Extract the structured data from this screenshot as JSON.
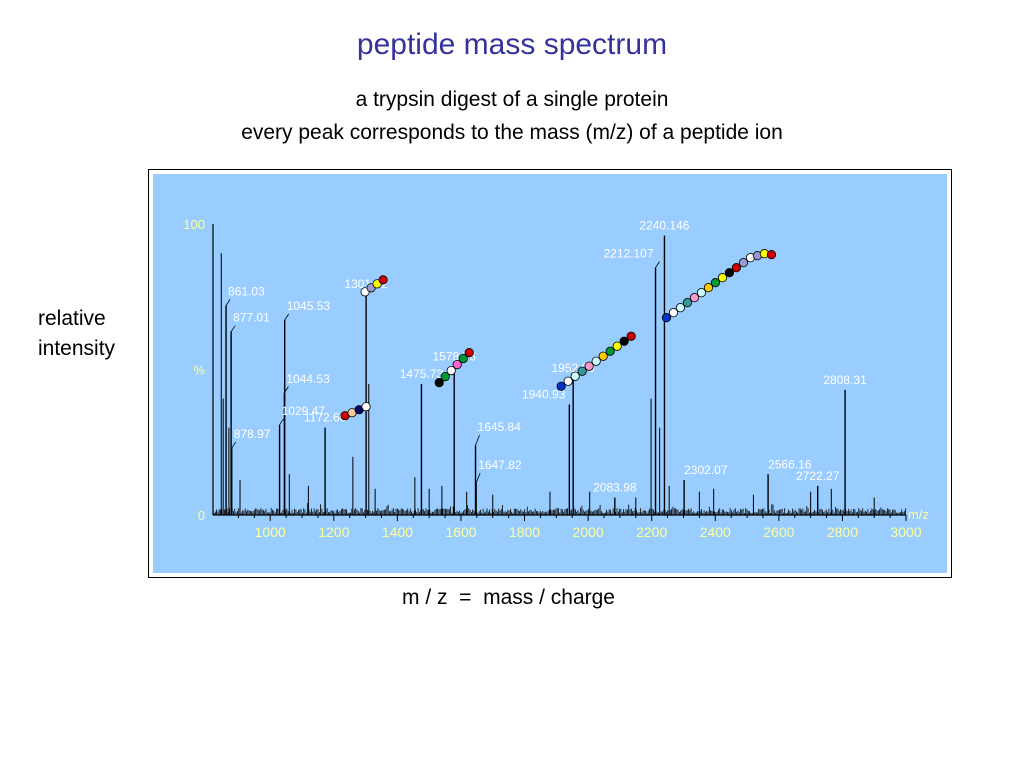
{
  "slide": {
    "title": "peptide mass spectrum",
    "subtitle1": "a trypsin digest of a single protein",
    "subtitle2": "every peak corresponds to the mass (m/z) of a peptide ion",
    "ylabel_line1": "relative",
    "ylabel_line2": "intensity",
    "xcaption": "m / z  =  mass / charge"
  },
  "colors": {
    "title": "#333399",
    "panel_bg": "#99ccff",
    "axis_text": "#ffff99",
    "peak_label": "#ffffff",
    "spectrum": "#000000"
  },
  "chart_data": {
    "type": "line",
    "xlabel": "m/z",
    "ylabel": "%",
    "xlim": [
      820,
      3000
    ],
    "ylim": [
      0,
      100
    ],
    "x_ticks": [
      1000,
      1200,
      1400,
      1600,
      1800,
      2000,
      2200,
      2400,
      2600,
      2800,
      3000
    ],
    "y_ticks": [
      {
        "value": 0,
        "label": "0"
      },
      {
        "value": 50,
        "label": "%"
      },
      {
        "value": 100,
        "label": "100"
      }
    ],
    "grid": false,
    "peaks": [
      {
        "mz": 861.03,
        "intensity": 72,
        "label": "861.03"
      },
      {
        "mz": 877.01,
        "intensity": 63,
        "label": "877.01"
      },
      {
        "mz": 878.97,
        "intensity": 23,
        "label": "878.97"
      },
      {
        "mz": 1029.47,
        "intensity": 31,
        "label": "1029.47"
      },
      {
        "mz": 1044.53,
        "intensity": 42,
        "label": "1044.53"
      },
      {
        "mz": 1045.53,
        "intensity": 67,
        "label": "1045.53"
      },
      {
        "mz": 1172.6,
        "intensity": 30,
        "label": "1172.60"
      },
      {
        "mz": 1301.62,
        "intensity": 76,
        "label": "1301.62"
      },
      {
        "mz": 1475.73,
        "intensity": 45,
        "label": "1475.73"
      },
      {
        "mz": 1578.76,
        "intensity": 51,
        "label": "1578.76"
      },
      {
        "mz": 1645.84,
        "intensity": 24,
        "label": "1645.84"
      },
      {
        "mz": 1647.82,
        "intensity": 11,
        "label": "1647.82"
      },
      {
        "mz": 1940.93,
        "intensity": 38,
        "label": "1940.93"
      },
      {
        "mz": 1952.99,
        "intensity": 47,
        "label": "1952.99"
      },
      {
        "mz": 2083.98,
        "intensity": 6,
        "label": "2083.98"
      },
      {
        "mz": 2212.107,
        "intensity": 85,
        "label": "2212.107"
      },
      {
        "mz": 2240.146,
        "intensity": 96,
        "label": "2240.146"
      },
      {
        "mz": 2302.07,
        "intensity": 12,
        "label": "2302.07"
      },
      {
        "mz": 2566.16,
        "intensity": 14,
        "label": "2566.16"
      },
      {
        "mz": 2722.27,
        "intensity": 10,
        "label": "2722.27"
      },
      {
        "mz": 2808.31,
        "intensity": 43,
        "label": "2808.31"
      }
    ]
  },
  "peptide_chains": [
    {
      "peak": "1172.60",
      "beads": [
        "#cc0000",
        "#ffcc99",
        "#000066",
        "#ffffff"
      ]
    },
    {
      "peak": "1301.62",
      "beads": [
        "#ffffff",
        "#9999cc",
        "#ffff00",
        "#cc0000"
      ]
    },
    {
      "peak": "1578.76",
      "beads": [
        "#000000",
        "#009933",
        "#ffffff",
        "#ff66cc",
        "#009933",
        "#cc0000"
      ]
    },
    {
      "peak": "1952.99",
      "beads": [
        "#0033cc",
        "#ffffff",
        "#ccffff",
        "#339999",
        "#ff99cc",
        "#ccffff",
        "#ffcc00",
        "#009933",
        "#ffff00",
        "#000000",
        "#cc0000"
      ]
    },
    {
      "peak": "2240.146",
      "beads": [
        "#0033cc",
        "#ffffff",
        "#ccffff",
        "#339999",
        "#ff99cc",
        "#ccffff",
        "#ffcc00",
        "#009933",
        "#ffff00",
        "#000000",
        "#cc0000",
        "#9999cc",
        "#ffffff",
        "#9999cc",
        "#ffff00",
        "#cc0000"
      ]
    }
  ]
}
